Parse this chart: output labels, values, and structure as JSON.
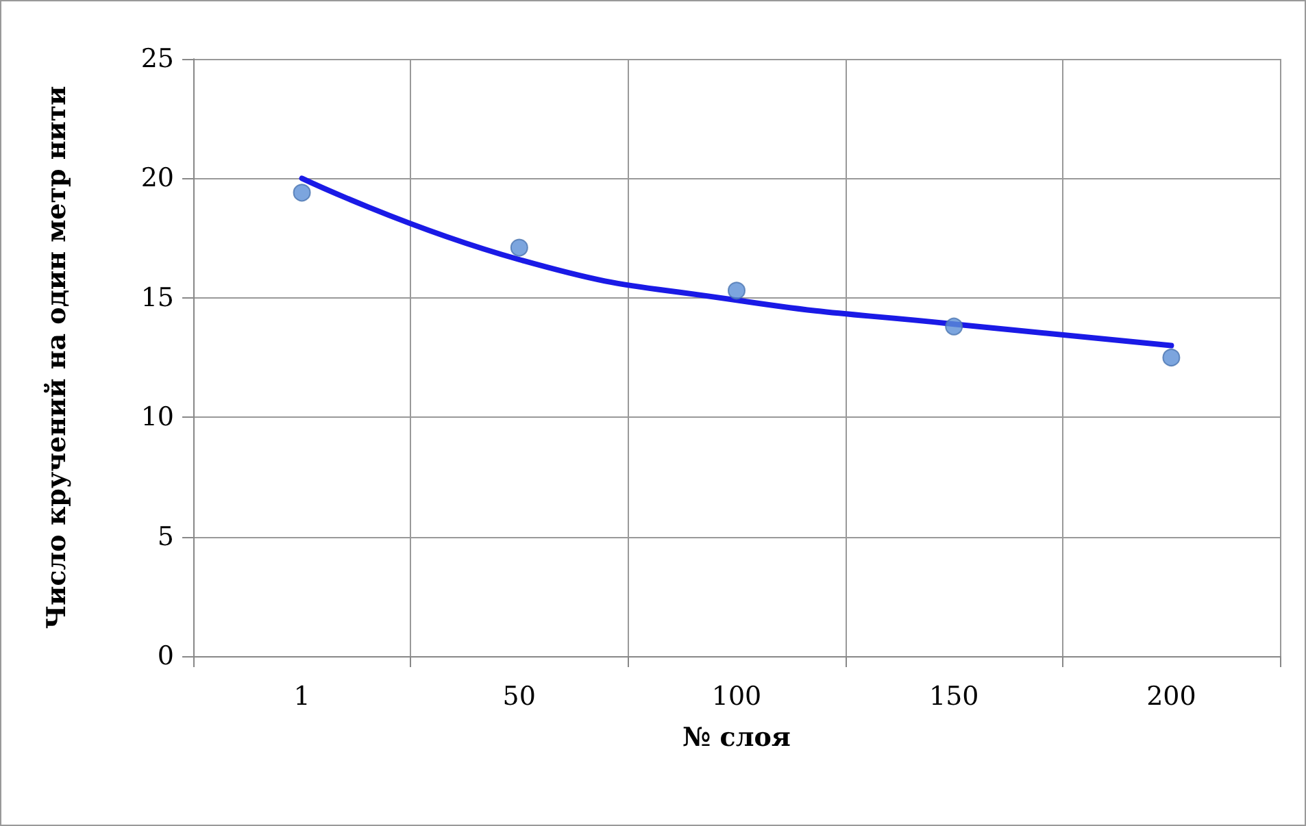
{
  "chart_data": {
    "type": "scatter",
    "xlabel": "№ слоя",
    "ylabel": "Число кручений на один метр нити",
    "categories": [
      "1",
      "50",
      "100",
      "150",
      "200"
    ],
    "series": [
      {
        "color": "#5b8fd6",
        "marker": "circle",
        "values": [
          19.4,
          17.1,
          15.3,
          13.8,
          12.5
        ]
      },
      {
        "type": "line",
        "color": "#1a1ae6",
        "marker": "none",
        "line_style": "solid",
        "values": [
          20.0,
          16.6,
          14.9,
          13.9,
          13.0
        ]
      }
    ],
    "ylim": [
      0,
      25
    ],
    "yticks": [
      0,
      5,
      10,
      15,
      20,
      25
    ],
    "grid": true
  }
}
